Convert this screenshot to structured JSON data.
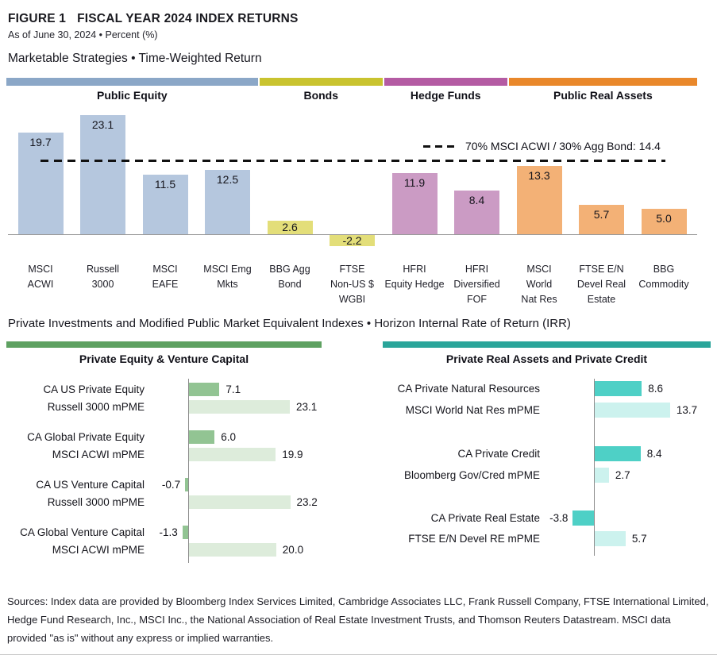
{
  "header": {
    "figure_label": "FIGURE 1",
    "title": "FISCAL YEAR 2024 INDEX RETURNS",
    "subtitle": "As of June 30, 2024 • Percent (%)"
  },
  "sections": {
    "marketable_title": "Marketable Strategies • Time-Weighted Return",
    "private_title": "Private Investments and Modified Public Market Equivalent Indexes • Horizon Internal Rate of Return (IRR)"
  },
  "chart_data": [
    {
      "id": "marketable",
      "type": "bar",
      "title": "Marketable Strategies • Time-Weighted Return",
      "ylabel": "Percent (%)",
      "ylim": [
        -4,
        26
      ],
      "grid": false,
      "groups": [
        {
          "label": "Public Equity",
          "strip_color": "#8ba7c7",
          "bar_color": "#b5c7de",
          "count": 4
        },
        {
          "label": "Bonds",
          "strip_color": "#c9c32f",
          "bar_color": "#e3de79",
          "count": 2
        },
        {
          "label": "Hedge Funds",
          "strip_color": "#b45ba3",
          "bar_color": "#cb9bc4",
          "count": 2
        },
        {
          "label": "Public Real Assets",
          "strip_color": "#e9882b",
          "bar_color": "#f3b176",
          "count": 3
        }
      ],
      "categories": [
        [
          "MSCI",
          "ACWI"
        ],
        [
          "Russell",
          "3000"
        ],
        [
          "MSCI",
          "EAFE"
        ],
        [
          "MSCI Emg",
          "Mkts"
        ],
        [
          "BBG Agg",
          "Bond"
        ],
        [
          "FTSE",
          "Non-US $",
          "WGBI"
        ],
        [
          "HFRI",
          "Equity Hedge"
        ],
        [
          "HFRI",
          "Diversified",
          "FOF"
        ],
        [
          "MSCI",
          "World",
          "Nat Res"
        ],
        [
          "FTSE E/N",
          "Devel Real",
          "Estate"
        ],
        [
          "BBG",
          "Commodity"
        ]
      ],
      "values": [
        19.7,
        23.1,
        11.5,
        12.5,
        2.6,
        -2.2,
        11.9,
        8.4,
        13.3,
        5.7,
        5.0
      ],
      "benchmark_line": {
        "label": "70% MSCI ACWI / 30% Agg Bond: 14.4",
        "value": 14.4
      }
    },
    {
      "id": "pe_vc",
      "type": "bar-horizontal",
      "title": "Private Equity & Venture Capital",
      "accent_color": "#5ea161",
      "ca_color": "#92c493",
      "pme_color": "#ddecdb",
      "rows": [
        {
          "label": "CA US Private Equity",
          "value": 7.1,
          "kind": "ca"
        },
        {
          "label": "Russell 3000 mPME",
          "value": 23.1,
          "kind": "pme"
        },
        {
          "label": "CA Global Private Equity",
          "value": 6.0,
          "kind": "ca"
        },
        {
          "label": "MSCI ACWI mPME",
          "value": 19.9,
          "kind": "pme"
        },
        {
          "label": "CA US Venture Capital",
          "value": -0.7,
          "kind": "ca"
        },
        {
          "label": "Russell 3000 mPME",
          "value": 23.2,
          "kind": "pme"
        },
        {
          "label": "CA Global Venture Capital",
          "value": -1.3,
          "kind": "ca"
        },
        {
          "label": "MSCI ACWI mPME",
          "value": 20.0,
          "kind": "pme"
        }
      ]
    },
    {
      "id": "pra_pc",
      "type": "bar-horizontal",
      "title": "Private Real Assets and Private Credit",
      "accent_color": "#2aa59a",
      "ca_color": "#4ed0c6",
      "pme_color": "#ccf2ee",
      "rows": [
        {
          "label": "CA Private Natural Resources",
          "value": 8.6,
          "kind": "ca"
        },
        {
          "label": "MSCI World Nat Res mPME",
          "value": 13.7,
          "kind": "pme"
        },
        {
          "label": "CA Private Credit",
          "value": 8.4,
          "kind": "ca"
        },
        {
          "label": "Bloomberg Gov/Cred mPME",
          "value": 2.7,
          "kind": "pme"
        },
        {
          "label": "CA Private Real Estate",
          "value": -3.8,
          "kind": "ca"
        },
        {
          "label": "FTSE E/N Devel RE mPME",
          "value": 5.7,
          "kind": "pme"
        }
      ]
    }
  ],
  "footer": {
    "sources": "Sources: Index data are provided by Bloomberg Index Services Limited, Cambridge Associates LLC, Frank Russell Company, FTSE International Limited, Hedge Fund Research, Inc., MSCI Inc., the National Association of Real Estate Investment Trusts, and Thomson Reuters Datastream. MSCI data provided \"as is\" without any express or implied warranties."
  }
}
